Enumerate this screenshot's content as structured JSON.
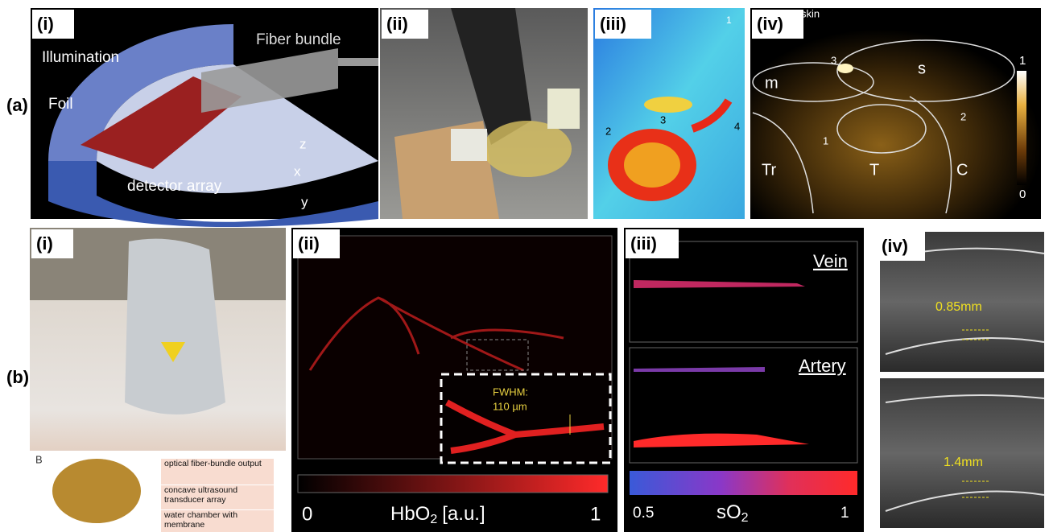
{
  "figure": {
    "rows": [
      {
        "label": "(a)",
        "panels": [
          {
            "label": "(i)",
            "annotations": [
              "Fiber bundle",
              "Illumination",
              "Foil",
              "detector array",
              "z",
              "x",
              "y"
            ]
          },
          {
            "label": "(ii)",
            "annotations": []
          },
          {
            "label": "(iii)",
            "annotations": [
              "1",
              "2",
              "3",
              "4"
            ]
          },
          {
            "label": "(iv)",
            "annotations": [
              "skin",
              "3",
              "s",
              "m",
              "2",
              "1",
              "Tr",
              "T",
              "C",
              "1",
              "0"
            ]
          }
        ]
      },
      {
        "label": "(b)",
        "panels": [
          {
            "label": "(i)",
            "annotations": [
              "B",
              "optical fiber-bundle output",
              "concave ultrasound transducer array",
              "water chamber with membrane"
            ]
          },
          {
            "label": "(ii)",
            "annotations": [
              "FWHM:",
              "110 µm",
              "0",
              "HbO",
              "2",
              "[a.u.]",
              "1"
            ]
          },
          {
            "label": "(iii)",
            "annotations": [
              "Vein",
              "Artery",
              "0.5",
              "sO",
              "2",
              "1"
            ]
          },
          {
            "label": "(iv)",
            "annotations": [
              "0.85mm",
              "1.4mm"
            ]
          }
        ]
      }
    ]
  }
}
